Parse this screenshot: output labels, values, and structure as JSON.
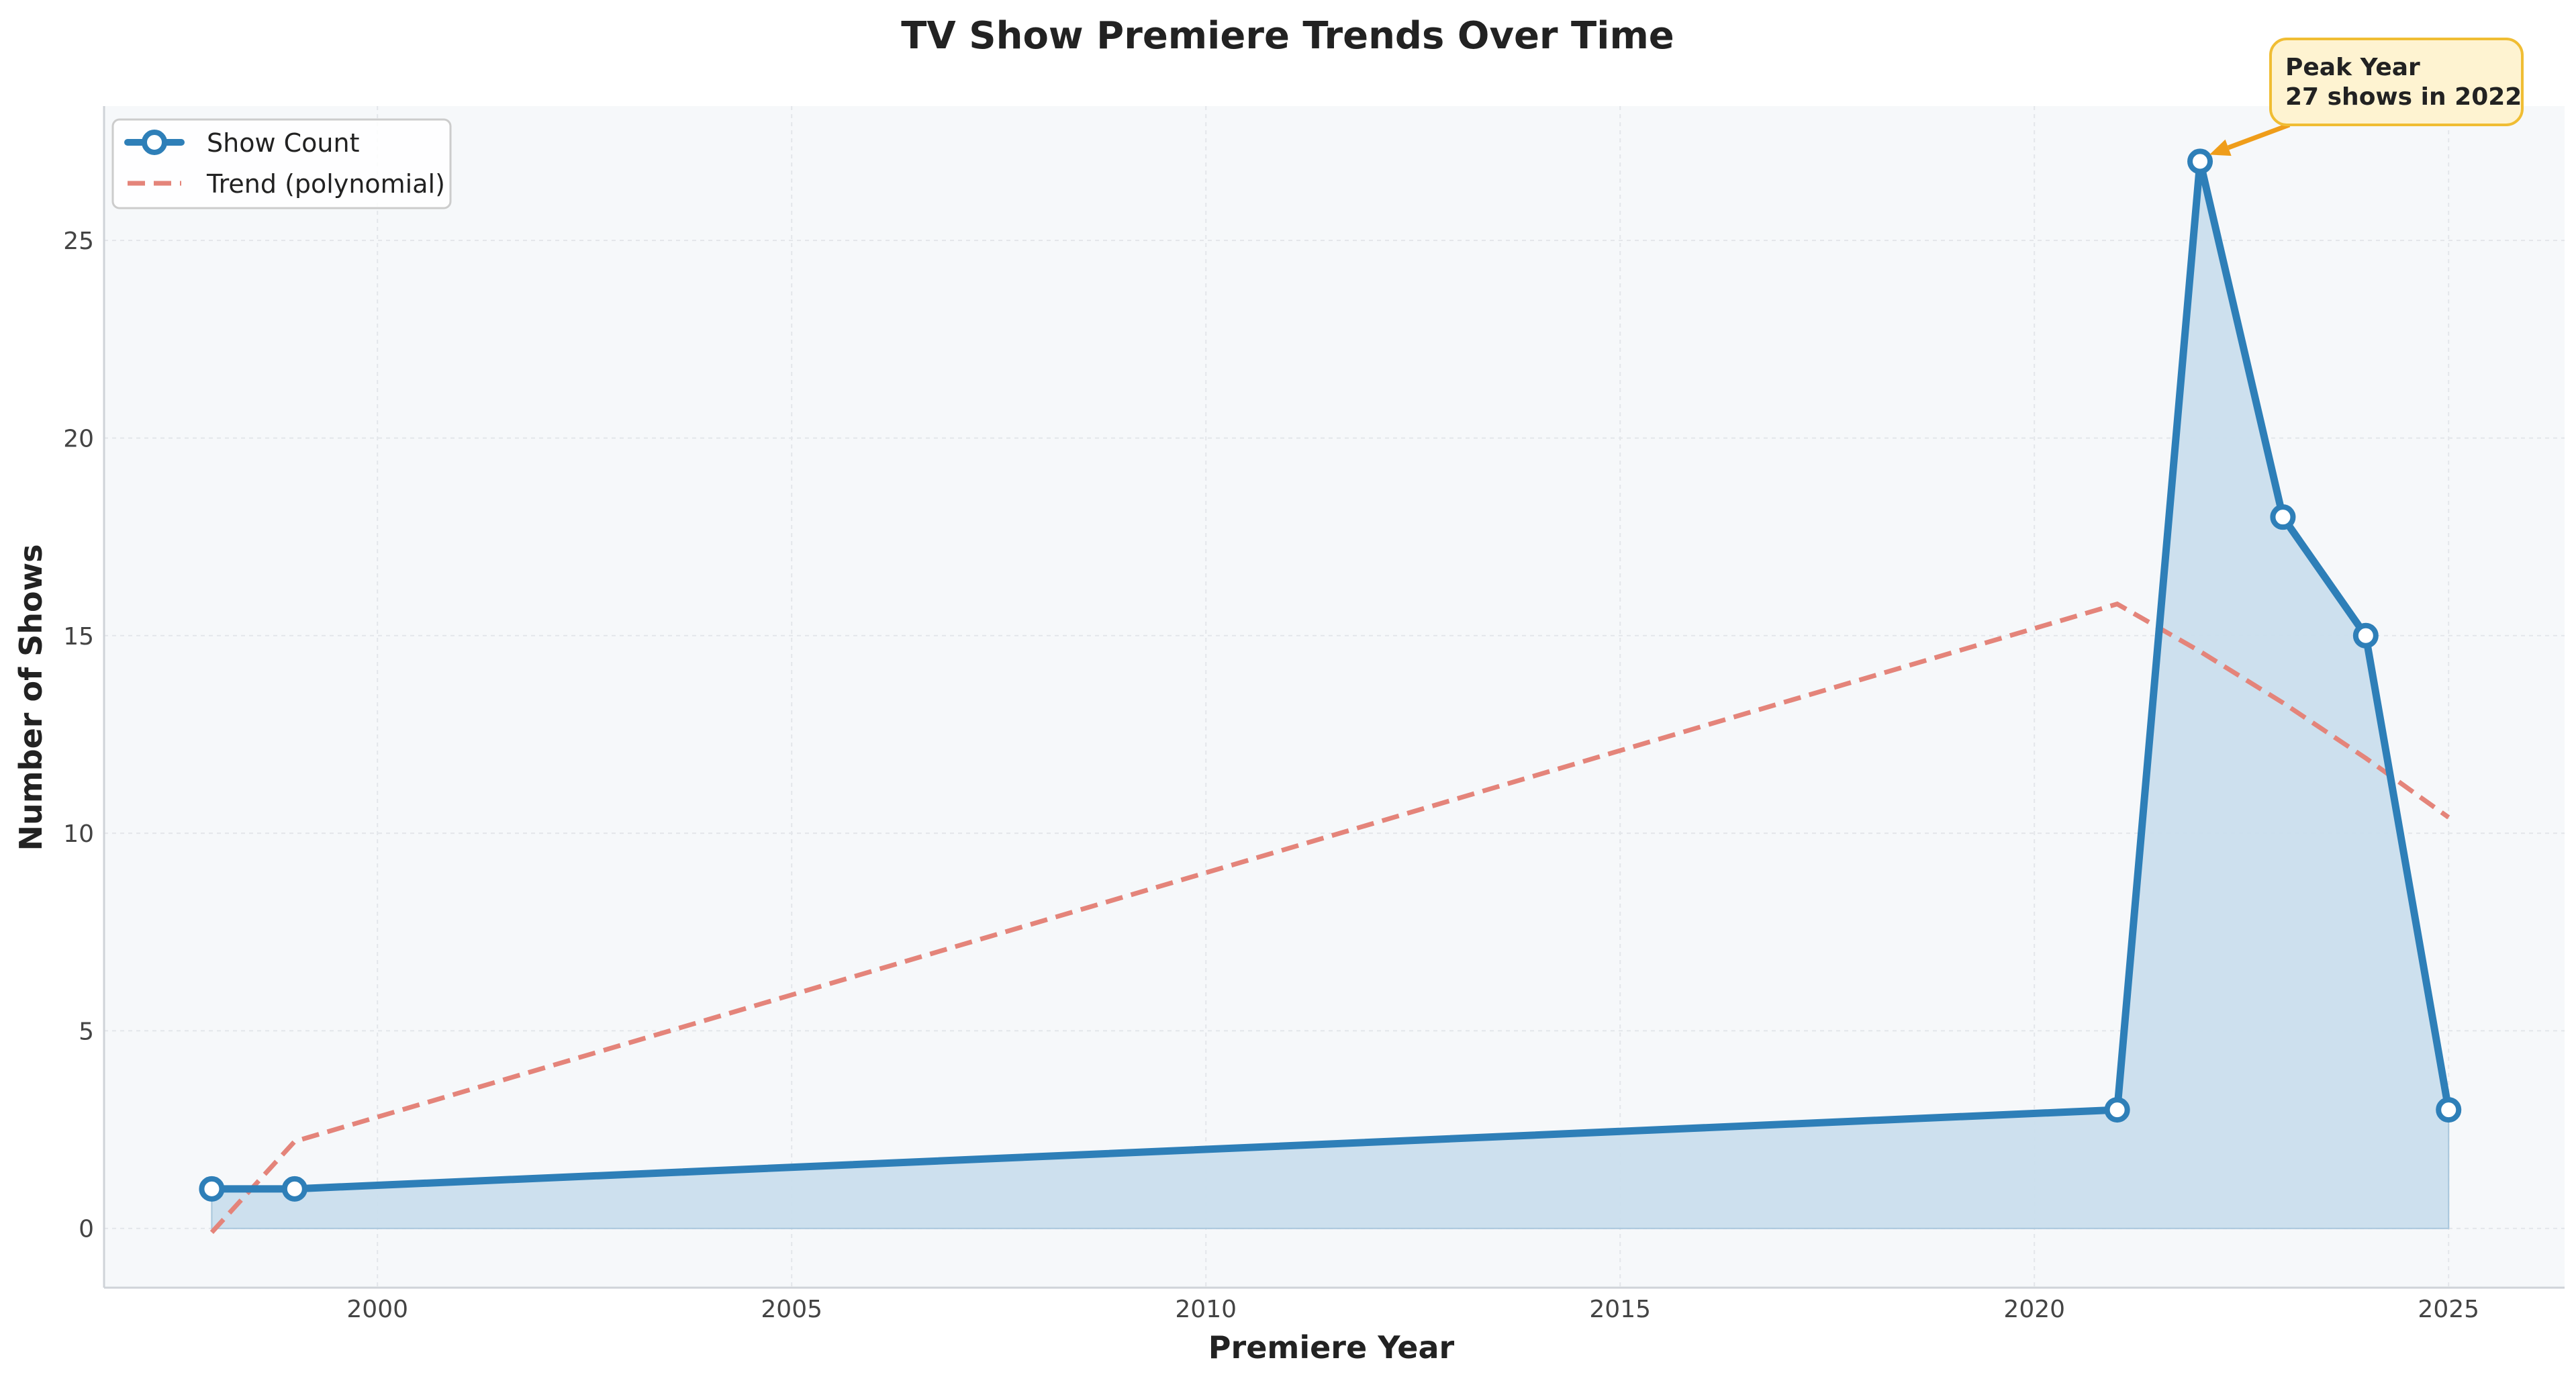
{
  "chart_data": {
    "type": "line",
    "title": "TV Show Premiere Trends Over Time",
    "xlabel": "Premiere Year",
    "ylabel": "Number of Shows",
    "xlim": [
      1996.7,
      2026.4
    ],
    "ylim": [
      -1.5,
      28.4
    ],
    "xticks": [
      2000,
      2005,
      2010,
      2015,
      2020,
      2025
    ],
    "yticks": [
      0,
      5,
      10,
      15,
      20,
      25
    ],
    "grid": true,
    "legend_position": "top-left",
    "series": [
      {
        "name": "Show Count",
        "style": "solid line with open circle markers and filled area",
        "color": "#2e7fb8",
        "x": [
          1998,
          1999,
          2021,
          2022,
          2023,
          2024,
          2025
        ],
        "y": [
          1,
          1,
          3,
          27,
          18,
          15,
          3
        ]
      },
      {
        "name": "Trend (polynomial)",
        "style": "dashed",
        "color": "#e4847a",
        "x": [
          1998,
          1999,
          2021,
          2022,
          2023,
          2024,
          2025
        ],
        "y": [
          -0.1,
          2.2,
          15.8,
          14.6,
          13.3,
          11.9,
          10.4
        ]
      }
    ],
    "annotation": {
      "line1": "Peak Year",
      "line2": "27 shows in 2022",
      "x": 2022,
      "y": 27
    },
    "colors": {
      "plot_background": "#f6f8fa",
      "fill": "#cadeed",
      "annotation_box": "#fef3d1",
      "annotation_border": "#f0bd33",
      "annotation_arrow": "#ef9d1a"
    }
  }
}
